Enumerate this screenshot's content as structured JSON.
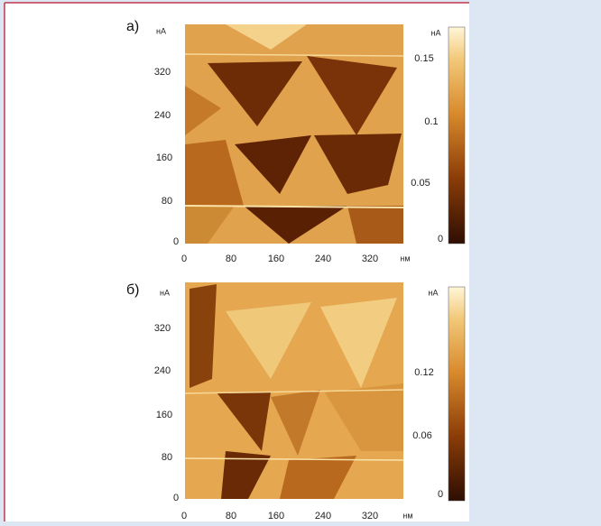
{
  "panels": [
    {
      "label": "а)",
      "y_unit": "нА",
      "x_unit": "нм",
      "yticks": [
        320,
        240,
        160,
        80,
        0
      ],
      "xticks": [
        0,
        80,
        160,
        240,
        320
      ],
      "colorbar": {
        "unit": "нА",
        "ticks": [
          0.15,
          0.1,
          0.05,
          0
        ]
      }
    },
    {
      "label": "б)",
      "y_unit": "нА",
      "x_unit": "нм",
      "yticks": [
        320,
        240,
        160,
        80,
        0
      ],
      "xticks": [
        0,
        80,
        160,
        240,
        320
      ],
      "colorbar": {
        "unit": "нА",
        "ticks": [
          0.12,
          0.06,
          0
        ]
      }
    }
  ]
}
